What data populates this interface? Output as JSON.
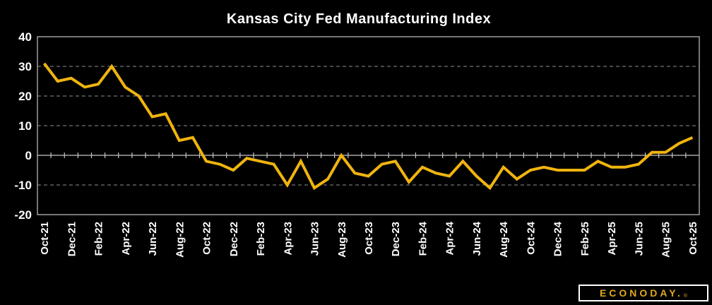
{
  "title": "Kansas City Fed Manufacturing Index",
  "logo": {
    "text": "ECONODAY.",
    "reg": "®"
  },
  "colors": {
    "background": "#000000",
    "line": "#F0B40F",
    "axis": "#C5C5C5",
    "grid": "#8F8F8F",
    "text": "#FFFFFF",
    "logo_gold": "#DFA81E"
  },
  "chart_data": {
    "type": "line",
    "title": "Kansas City Fed Manufacturing Index",
    "xlabel": "",
    "ylabel": "",
    "x": [
      "Oct-21",
      "Nov-21",
      "Dec-21",
      "Jan-22",
      "Feb-22",
      "Mar-22",
      "Apr-22",
      "May-22",
      "Jun-22",
      "Jul-22",
      "Aug-22",
      "Sep-22",
      "Oct-22",
      "Nov-22",
      "Dec-22",
      "Jan-23",
      "Feb-23",
      "Mar-23",
      "Apr-23",
      "May-23",
      "Jun-23",
      "Jul-23",
      "Aug-23",
      "Sep-23",
      "Oct-23",
      "Nov-23",
      "Dec-23",
      "Jan-24",
      "Feb-24",
      "Mar-24",
      "Apr-24",
      "May-24",
      "Jun-24",
      "Jul-24",
      "Aug-24",
      "Sep-24",
      "Oct-24",
      "Nov-24",
      "Dec-24",
      "Jan-25",
      "Feb-25",
      "Mar-25",
      "Apr-25",
      "May-25",
      "Jun-25",
      "Jul-25",
      "Aug-25",
      "Sep-25",
      "Oct-25"
    ],
    "values": [
      31,
      25,
      26,
      23,
      24,
      30,
      23,
      20,
      13,
      14,
      5,
      6,
      -2,
      -3,
      -5,
      -1,
      -2,
      -3,
      -10,
      -2,
      -11,
      -8,
      0,
      -6,
      -7,
      -3,
      -2,
      -9,
      -4,
      -6,
      -7,
      -2,
      -7,
      -11,
      -4,
      -8,
      -5,
      -4,
      -5,
      -5,
      -5,
      -2,
      -4,
      -4,
      -3,
      1,
      1,
      4,
      6
    ],
    "ylim": [
      -20,
      40
    ],
    "yticks": [
      40,
      30,
      20,
      10,
      0,
      -10,
      -20
    ],
    "grid_values": [
      30,
      20,
      10,
      -10
    ],
    "x_label_every": 2,
    "grid": "dashed horizontal",
    "legend": "none",
    "line_width": 4
  }
}
